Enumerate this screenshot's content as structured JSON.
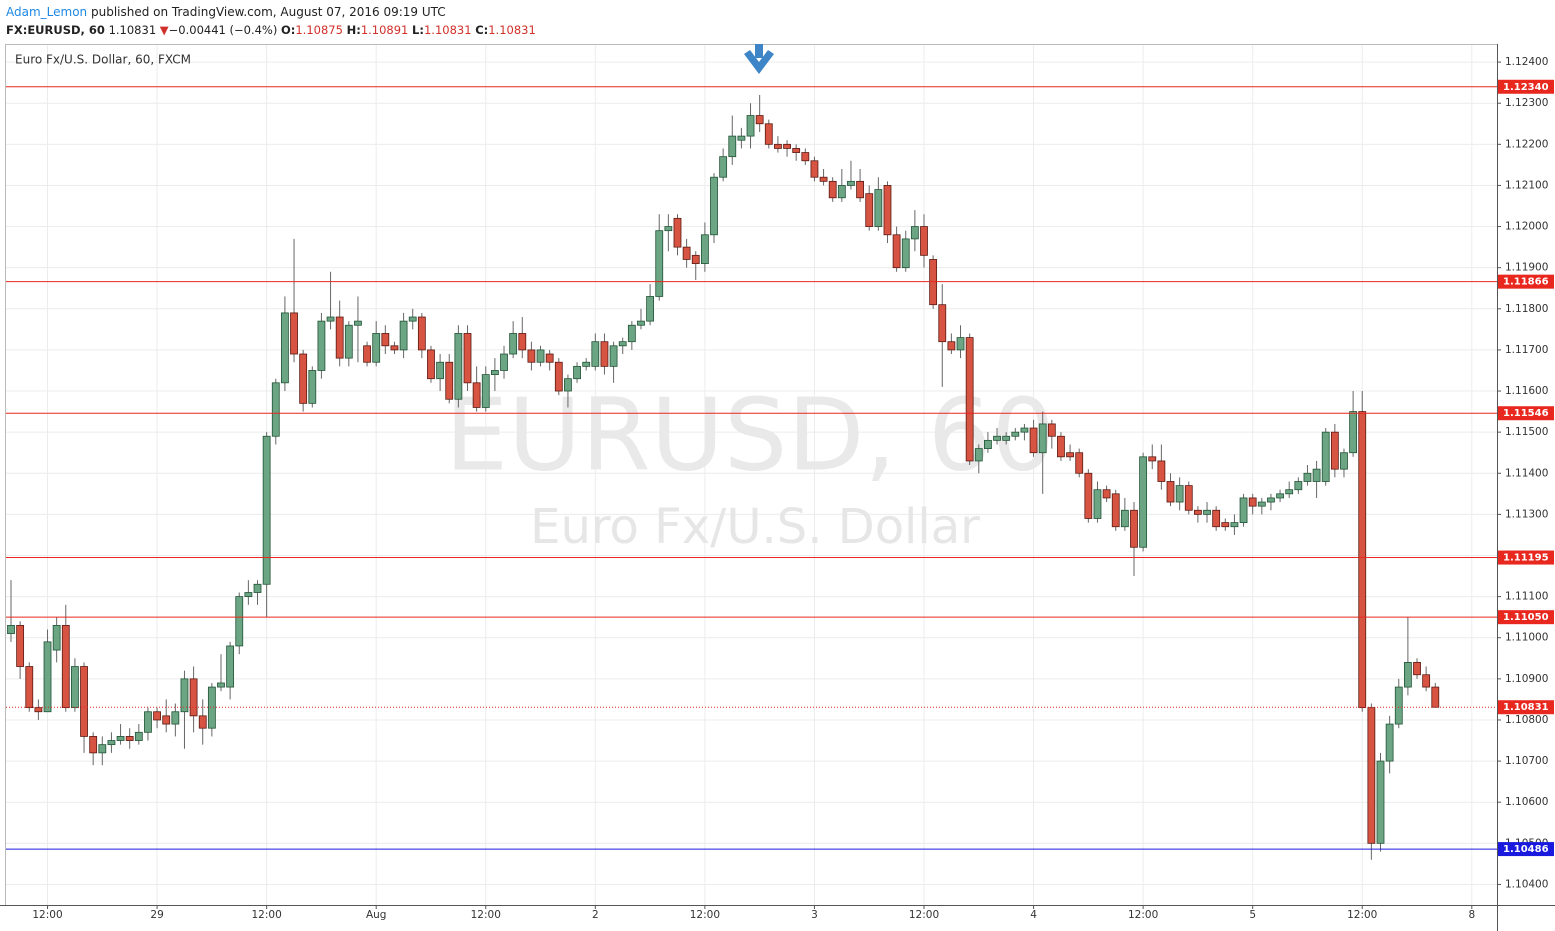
{
  "header": {
    "author": "Adam_Lemon",
    "published": "published on TradingView.com, August 07, 2016 09:19 UTC",
    "symbol": "FX:EURUSD, 60",
    "last": "1.10831",
    "change_arrow": "▼",
    "change": "−0.00441 (−0.4%)",
    "ohlc_labels": [
      "O:",
      "H:",
      "L:",
      "C:"
    ],
    "ohlc_values": [
      "1.10875",
      "1.10891",
      "1.10831",
      "1.10831"
    ]
  },
  "chart_data": {
    "type": "candlestick",
    "title": "Euro Fx/U.S. Dollar, 60, FXCM",
    "watermark": "EURUSD, 60",
    "watermark_subtitle": "Euro Fx/U.S. Dollar",
    "up_color": "#6ba583",
    "down_color": "#d75442",
    "grid": true,
    "categories": [
      null,
      null,
      null,
      null,
      "12:00",
      null,
      null,
      null,
      null,
      null,
      null,
      null,
      null,
      null,
      null,
      null,
      "29",
      null,
      null,
      null,
      null,
      null,
      null,
      null,
      null,
      null,
      null,
      null,
      "12:00",
      null,
      null,
      null,
      null,
      null,
      null,
      null,
      null,
      null,
      null,
      null,
      "Aug",
      null,
      null,
      null,
      null,
      null,
      null,
      null,
      null,
      null,
      null,
      null,
      "12:00",
      null,
      null,
      null,
      null,
      null,
      null,
      null,
      null,
      null,
      null,
      null,
      "2",
      null,
      null,
      null,
      null,
      null,
      null,
      null,
      null,
      null,
      null,
      null,
      "12:00",
      null,
      null,
      null,
      null,
      null,
      null,
      null,
      null,
      null,
      null,
      null,
      "3",
      null,
      null,
      null,
      null,
      null,
      null,
      null,
      null,
      null,
      null,
      null,
      "12:00",
      null,
      null,
      null,
      null,
      null,
      null,
      null,
      null,
      null,
      null,
      null,
      "4",
      null,
      null,
      null,
      null,
      null,
      null,
      null,
      null,
      null,
      null,
      null,
      "12:00",
      null,
      null,
      null,
      null,
      null,
      null,
      null,
      null,
      null,
      null,
      null,
      "5",
      null,
      null,
      null,
      null,
      null,
      null,
      null,
      null,
      null,
      null,
      null,
      "12:00",
      null,
      null,
      null,
      null,
      null,
      null,
      null,
      null,
      null,
      null,
      null,
      "8",
      null,
      null
    ],
    "open": [
      1.1101,
      1.1103,
      1.1093,
      1.1083,
      1.1082,
      1.1097,
      1.1103,
      1.1083,
      1.1093,
      1.1076,
      1.1072,
      1.1074,
      1.1075,
      1.1076,
      1.1075,
      1.1077,
      1.1082,
      1.1081,
      1.1079,
      1.1082,
      1.109,
      1.1081,
      1.1078,
      1.1088,
      1.1088,
      1.1098,
      1.111,
      1.1111,
      1.1113,
      1.1149,
      1.1162,
      1.1179,
      1.1169,
      1.1157,
      1.1165,
      1.1177,
      1.1178,
      1.1168,
      1.1176,
      1.1171,
      1.1167,
      1.1174,
      1.1171,
      1.117,
      1.1177,
      1.1178,
      1.117,
      1.1163,
      1.1167,
      1.1158,
      1.1174,
      1.1162,
      1.1156,
      1.1164,
      1.1165,
      1.1169,
      1.1174,
      1.117,
      1.1167,
      1.1169,
      1.1167,
      1.116,
      1.1163,
      1.1166,
      1.1166,
      1.1172,
      1.1166,
      1.1171,
      1.1172,
      1.1176,
      1.1177,
      1.1183,
      1.1199,
      1.1202,
      1.1195,
      1.1193,
      1.1191,
      1.1198,
      1.1212,
      1.1217,
      1.1221,
      1.1222,
      1.1227,
      1.1225,
      1.122,
      1.122,
      1.1219,
      1.1218,
      1.1216,
      1.1212,
      1.1211,
      1.1207,
      1.121,
      1.1211,
      1.1208,
      1.12,
      1.121,
      1.1198,
      1.119,
      1.1197,
      1.12,
      1.1192,
      1.1181,
      1.1172,
      1.117,
      1.1173,
      1.1143,
      1.1146,
      1.1148,
      1.1148,
      1.1149,
      1.115,
      1.1151,
      1.1145,
      1.1152,
      1.1149,
      1.1145,
      1.1145,
      1.114,
      1.1129,
      1.1136,
      1.1135,
      1.1127,
      1.1131,
      1.1122,
      1.1144,
      1.1143,
      1.1138,
      1.1133,
      1.1137,
      1.1131,
      1.113,
      1.1131,
      1.1128,
      1.1127,
      1.1128,
      1.1134,
      1.1132,
      1.1133,
      1.1134,
      1.1135,
      1.1136,
      1.1138,
      1.1138,
      1.1138,
      1.115,
      1.1141,
      1.1145,
      1.1155,
      1.1083,
      1.105,
      1.107,
      1.1079,
      1.1088,
      1.1094,
      1.1091,
      1.1088,
      null,
      null,
      null,
      null,
      null,
      null
    ],
    "high": [
      1.1114,
      1.1104,
      1.1094,
      1.1085,
      1.1102,
      1.1105,
      1.1108,
      1.1095,
      1.1094,
      1.1077,
      1.1076,
      1.1077,
      1.1079,
      1.1078,
      1.1079,
      1.1083,
      1.1083,
      1.1085,
      1.1084,
      1.1092,
      1.1093,
      1.1085,
      1.1089,
      1.1096,
      1.1099,
      1.1111,
      1.1114,
      1.1114,
      1.115,
      1.1163,
      1.1183,
      1.1197,
      1.117,
      1.1166,
      1.1179,
      1.1189,
      1.1182,
      1.1177,
      1.1183,
      1.1172,
      1.1177,
      1.1176,
      1.1172,
      1.1179,
      1.118,
      1.1179,
      1.1171,
      1.1169,
      1.1169,
      1.1176,
      1.1176,
      1.1166,
      1.1166,
      1.1168,
      1.1171,
      1.1177,
      1.1178,
      1.1172,
      1.1171,
      1.117,
      1.1168,
      1.1164,
      1.1167,
      1.1168,
      1.1174,
      1.1174,
      1.1172,
      1.1173,
      1.1177,
      1.118,
      1.1186,
      1.1203,
      1.1203,
      1.1203,
      1.1197,
      1.1194,
      1.1201,
      1.1213,
      1.1219,
      1.1227,
      1.1224,
      1.123,
      1.1232,
      1.1226,
      1.1222,
      1.1221,
      1.122,
      1.1219,
      1.1217,
      1.1214,
      1.1212,
      1.1214,
      1.1216,
      1.1214,
      1.121,
      1.1212,
      1.1211,
      1.12,
      1.1199,
      1.1204,
      1.1203,
      1.1193,
      1.1186,
      1.1174,
      1.1176,
      1.1174,
      1.1147,
      1.115,
      1.1151,
      1.115,
      1.1151,
      1.1152,
      1.1153,
      1.1155,
      1.1153,
      1.115,
      1.1147,
      1.1146,
      1.1141,
      1.1138,
      1.1137,
      1.1136,
      1.1134,
      1.1133,
      1.1145,
      1.1147,
      1.1147,
      1.114,
      1.1139,
      1.1138,
      1.1132,
      1.1133,
      1.1132,
      1.1129,
      1.113,
      1.1135,
      1.1135,
      1.1134,
      1.1135,
      1.1136,
      1.1138,
      1.1139,
      1.1142,
      1.1143,
      1.1151,
      1.1152,
      1.1146,
      1.116,
      1.116,
      1.1084,
      1.1072,
      1.1081,
      1.109,
      1.1105,
      1.1095,
      1.1093,
      1.1089,
      null,
      null,
      null,
      null,
      null,
      null
    ],
    "low": [
      1.1099,
      1.109,
      1.1082,
      1.108,
      1.1082,
      1.1094,
      1.1082,
      1.1082,
      1.1072,
      1.1069,
      1.1069,
      1.1072,
      1.1074,
      1.1073,
      1.1074,
      1.1075,
      1.1078,
      1.1077,
      1.1076,
      1.1073,
      1.1077,
      1.1074,
      1.1076,
      1.1087,
      1.1085,
      1.1096,
      1.1108,
      1.1108,
      1.1105,
      1.1147,
      1.116,
      1.1167,
      1.1155,
      1.1156,
      1.1163,
      1.1175,
      1.1166,
      1.1166,
      1.1167,
      1.1166,
      1.1166,
      1.1169,
      1.1169,
      1.1168,
      1.1175,
      1.1168,
      1.1162,
      1.116,
      1.1157,
      1.1156,
      1.116,
      1.1155,
      1.1155,
      1.116,
      1.1163,
      1.1168,
      1.1168,
      1.1165,
      1.1166,
      1.1165,
      1.1159,
      1.1156,
      1.1162,
      1.1165,
      1.1165,
      1.1164,
      1.1162,
      1.1169,
      1.117,
      1.1175,
      1.1176,
      1.1182,
      1.1194,
      1.1193,
      1.119,
      1.1187,
      1.1189,
      1.1196,
      1.1211,
      1.1215,
      1.1219,
      1.1219,
      1.1223,
      1.1219,
      1.1218,
      1.1217,
      1.1216,
      1.1215,
      1.1211,
      1.121,
      1.1206,
      1.1206,
      1.1209,
      1.1206,
      1.1199,
      1.1199,
      1.1196,
      1.1189,
      1.1189,
      1.1194,
      1.119,
      1.118,
      1.1161,
      1.1169,
      1.1168,
      1.1142,
      1.114,
      1.1145,
      1.1147,
      1.1147,
      1.1148,
      1.1148,
      1.1144,
      1.1135,
      1.1146,
      1.1143,
      1.1143,
      1.1139,
      1.1128,
      1.1128,
      1.1133,
      1.1126,
      1.1126,
      1.1115,
      1.1121,
      1.1141,
      1.1136,
      1.1132,
      1.1131,
      1.113,
      1.1128,
      1.1128,
      1.1126,
      1.1126,
      1.1125,
      1.1127,
      1.113,
      1.113,
      1.1131,
      1.1133,
      1.1134,
      1.1135,
      1.1137,
      1.1134,
      1.1137,
      1.1139,
      1.1139,
      1.1144,
      1.1082,
      1.1046,
      1.1048,
      1.1067,
      1.1078,
      1.1086,
      1.109,
      1.1087,
      1.1083,
      null,
      null,
      null,
      null,
      null,
      null
    ],
    "close": [
      1.1103,
      1.1093,
      1.1083,
      1.1082,
      1.1099,
      1.1103,
      1.1083,
      1.1093,
      1.1076,
      1.1072,
      1.1074,
      1.1075,
      1.1076,
      1.1075,
      1.1077,
      1.1082,
      1.108,
      1.1079,
      1.1082,
      1.109,
      1.1081,
      1.1078,
      1.1088,
      1.1089,
      1.1098,
      1.111,
      1.1111,
      1.1113,
      1.1149,
      1.1162,
      1.1179,
      1.1169,
      1.1157,
      1.1165,
      1.1177,
      1.1178,
      1.1168,
      1.1176,
      1.1177,
      1.1167,
      1.1174,
      1.1171,
      1.117,
      1.1177,
      1.1178,
      1.117,
      1.1163,
      1.1167,
      1.1158,
      1.1174,
      1.1162,
      1.1156,
      1.1164,
      1.1165,
      1.1169,
      1.1174,
      1.117,
      1.1167,
      1.117,
      1.1167,
      1.116,
      1.1163,
      1.1166,
      1.1167,
      1.1172,
      1.1166,
      1.1171,
      1.1172,
      1.1176,
      1.1177,
      1.1183,
      1.1199,
      1.12,
      1.1195,
      1.1192,
      1.1191,
      1.1198,
      1.1212,
      1.1217,
      1.1222,
      1.1222,
      1.1227,
      1.1225,
      1.122,
      1.1219,
      1.1219,
      1.1218,
      1.1216,
      1.1212,
      1.1211,
      1.1207,
      1.121,
      1.1211,
      1.1207,
      1.12,
      1.1209,
      1.1198,
      1.119,
      1.1197,
      1.12,
      1.1193,
      1.1181,
      1.1172,
      1.117,
      1.1173,
      1.1143,
      1.1146,
      1.1148,
      1.1149,
      1.1149,
      1.115,
      1.1151,
      1.1145,
      1.1152,
      1.1149,
      1.1144,
      1.1144,
      1.114,
      1.1129,
      1.1136,
      1.1134,
      1.1127,
      1.1131,
      1.1122,
      1.1144,
      1.1143,
      1.1138,
      1.1133,
      1.1137,
      1.1131,
      1.113,
      1.1131,
      1.1127,
      1.1127,
      1.1128,
      1.1134,
      1.1132,
      1.1133,
      1.1134,
      1.1135,
      1.1136,
      1.1138,
      1.114,
      1.1141,
      1.115,
      1.1141,
      1.1145,
      1.1155,
      1.1083,
      1.105,
      1.107,
      1.1079,
      1.1088,
      1.1094,
      1.1091,
      1.1088,
      1.10831,
      null,
      null,
      null,
      null,
      null,
      null
    ],
    "ylim": [
      1.1035,
      1.12444
    ],
    "yticks": [
      {
        "value": 1.104,
        "label": "1.10400"
      },
      {
        "value": 1.105,
        "label": "1.10500"
      },
      {
        "value": 1.106,
        "label": "1.10600"
      },
      {
        "value": 1.107,
        "label": "1.10700"
      },
      {
        "value": 1.108,
        "label": "1.10800"
      },
      {
        "value": 1.109,
        "label": "1.10900"
      },
      {
        "value": 1.11,
        "label": "1.11000"
      },
      {
        "value": 1.111,
        "label": "1.11100"
      },
      {
        "value": 1.112,
        "label": "1.11200"
      },
      {
        "value": 1.113,
        "label": "1.11300"
      },
      {
        "value": 1.114,
        "label": "1.11400"
      },
      {
        "value": 1.115,
        "label": "1.11500"
      },
      {
        "value": 1.116,
        "label": "1.11600"
      },
      {
        "value": 1.117,
        "label": "1.11700"
      },
      {
        "value": 1.118,
        "label": "1.11800"
      },
      {
        "value": 1.119,
        "label": "1.11900"
      },
      {
        "value": 1.12,
        "label": "1.12000"
      },
      {
        "value": 1.121,
        "label": "1.12100"
      },
      {
        "value": 1.122,
        "label": "1.12200"
      },
      {
        "value": 1.123,
        "label": "1.12300"
      },
      {
        "value": 1.124,
        "label": "1.12400"
      }
    ],
    "levels": [
      {
        "value": 1.1234,
        "label": "1.12340",
        "color": "#e8271f"
      },
      {
        "value": 1.11866,
        "label": "1.11866",
        "color": "#e8271f"
      },
      {
        "value": 1.11546,
        "label": "1.11546",
        "color": "#e8271f"
      },
      {
        "value": 1.11195,
        "label": "1.11195",
        "color": "#e8271f"
      },
      {
        "value": 1.1105,
        "label": "1.11050",
        "color": "#e8271f"
      },
      {
        "value": 1.10486,
        "label": "1.10486",
        "color": "#1a1adf"
      }
    ],
    "last_price": {
      "value": 1.10831,
      "label": "1.10831",
      "color": "#e8271f"
    }
  }
}
